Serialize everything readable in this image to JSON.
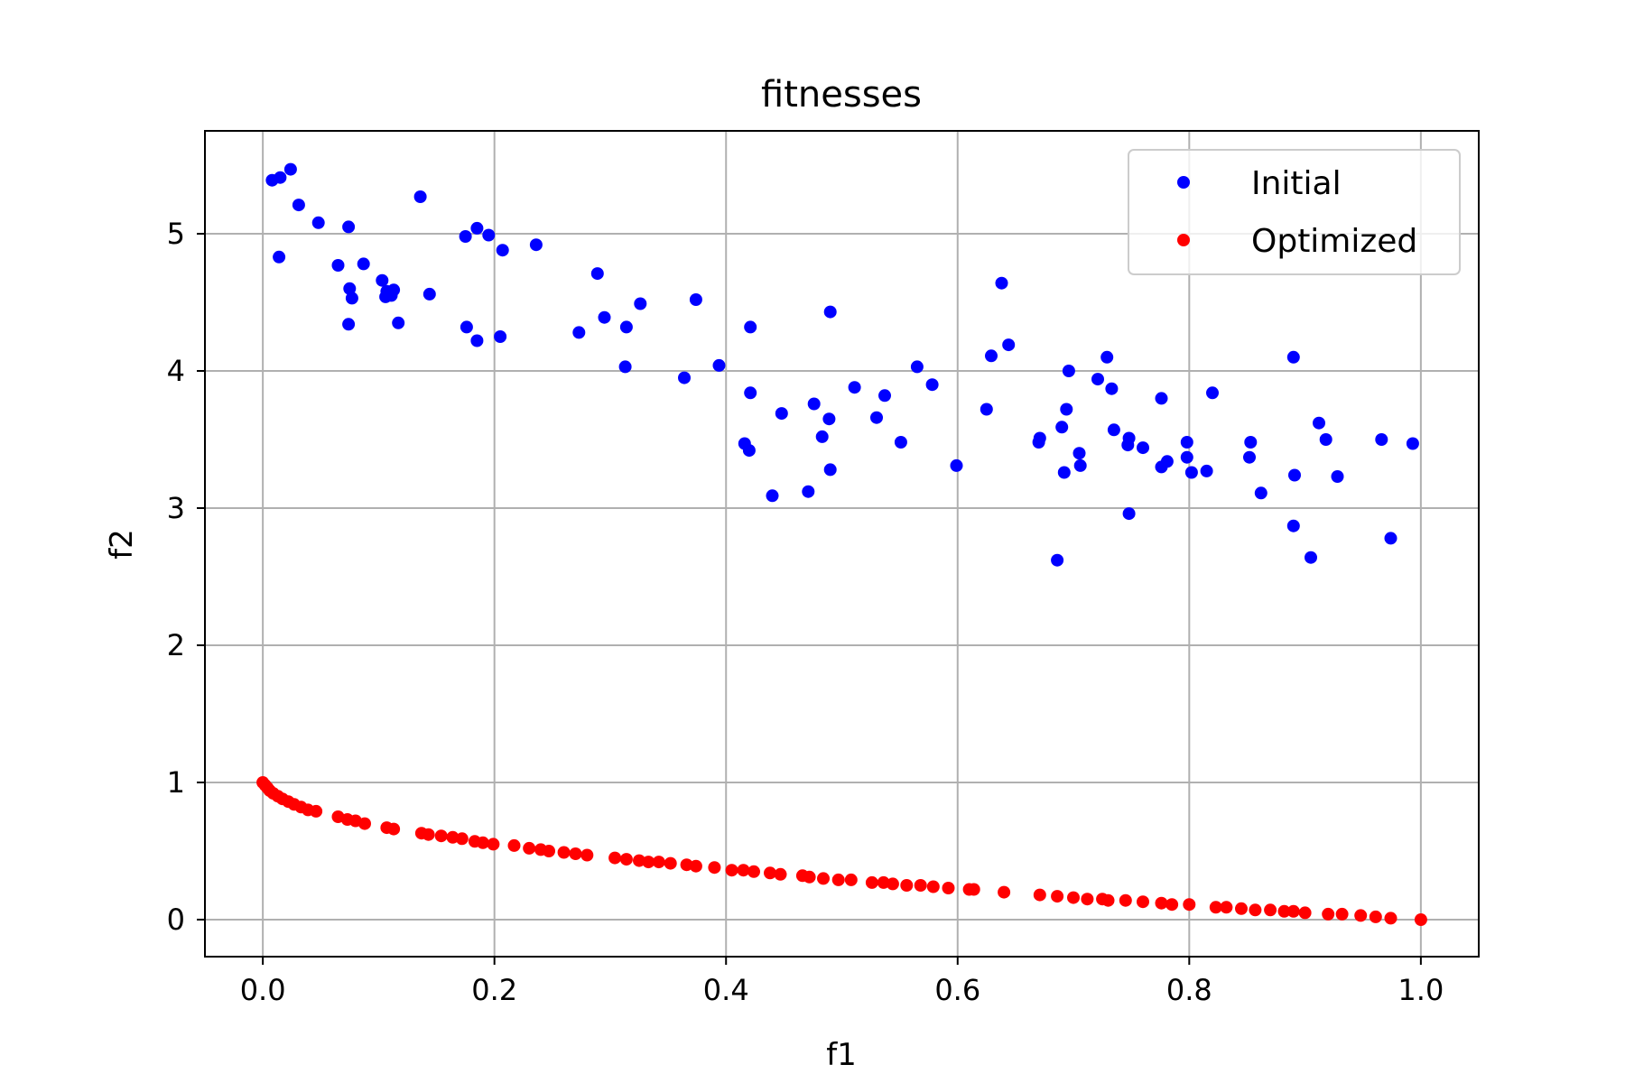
{
  "chart_data": {
    "type": "scatter",
    "title": "fitnesses",
    "xlabel": "f1",
    "ylabel": "f2",
    "xlim": [
      -0.05,
      1.05
    ],
    "ylim": [
      -0.27,
      5.75
    ],
    "xticks": [
      0.0,
      0.2,
      0.4,
      0.6,
      0.8,
      1.0
    ],
    "xtick_labels": [
      "0.0",
      "0.2",
      "0.4",
      "0.6",
      "0.8",
      "1.0"
    ],
    "yticks": [
      0,
      1,
      2,
      3,
      4,
      5
    ],
    "ytick_labels": [
      "0",
      "1",
      "2",
      "3",
      "4",
      "5"
    ],
    "grid": true,
    "legend_position": "top-right",
    "series": [
      {
        "name": "Initial",
        "color": "#0000ff",
        "points": [
          [
            0.008,
            5.39
          ],
          [
            0.015,
            5.41
          ],
          [
            0.024,
            5.47
          ],
          [
            0.031,
            5.21
          ],
          [
            0.014,
            4.83
          ],
          [
            0.048,
            5.08
          ],
          [
            0.074,
            5.05
          ],
          [
            0.065,
            4.77
          ],
          [
            0.087,
            4.78
          ],
          [
            0.075,
            4.6
          ],
          [
            0.077,
            4.53
          ],
          [
            0.074,
            4.34
          ],
          [
            0.103,
            4.66
          ],
          [
            0.107,
            4.58
          ],
          [
            0.106,
            4.54
          ],
          [
            0.113,
            4.59
          ],
          [
            0.111,
            4.55
          ],
          [
            0.117,
            4.35
          ],
          [
            0.136,
            5.27
          ],
          [
            0.144,
            4.56
          ],
          [
            0.175,
            4.98
          ],
          [
            0.185,
            5.04
          ],
          [
            0.195,
            4.99
          ],
          [
            0.207,
            4.88
          ],
          [
            0.176,
            4.32
          ],
          [
            0.185,
            4.22
          ],
          [
            0.205,
            4.25
          ],
          [
            0.236,
            4.92
          ],
          [
            0.289,
            4.71
          ],
          [
            0.273,
            4.28
          ],
          [
            0.295,
            4.39
          ],
          [
            0.314,
            4.32
          ],
          [
            0.326,
            4.49
          ],
          [
            0.313,
            4.03
          ],
          [
            0.364,
            3.95
          ],
          [
            0.374,
            4.52
          ],
          [
            0.394,
            4.04
          ],
          [
            0.421,
            4.32
          ],
          [
            0.421,
            3.84
          ],
          [
            0.416,
            3.47
          ],
          [
            0.42,
            3.42
          ],
          [
            0.44,
            3.09
          ],
          [
            0.448,
            3.69
          ],
          [
            0.476,
            3.76
          ],
          [
            0.471,
            3.12
          ],
          [
            0.483,
            3.52
          ],
          [
            0.489,
            3.65
          ],
          [
            0.49,
            4.43
          ],
          [
            0.49,
            3.28
          ],
          [
            0.511,
            3.88
          ],
          [
            0.53,
            3.66
          ],
          [
            0.537,
            3.82
          ],
          [
            0.551,
            3.48
          ],
          [
            0.565,
            4.03
          ],
          [
            0.578,
            3.9
          ],
          [
            0.599,
            3.31
          ],
          [
            0.625,
            3.72
          ],
          [
            0.629,
            4.11
          ],
          [
            0.638,
            4.64
          ],
          [
            0.644,
            4.19
          ],
          [
            0.67,
            3.48
          ],
          [
            0.671,
            3.51
          ],
          [
            0.69,
            3.59
          ],
          [
            0.692,
            3.26
          ],
          [
            0.694,
            3.72
          ],
          [
            0.696,
            4.0
          ],
          [
            0.686,
            2.62
          ],
          [
            0.705,
            3.4
          ],
          [
            0.706,
            3.31
          ],
          [
            0.721,
            3.94
          ],
          [
            0.729,
            4.1
          ],
          [
            0.733,
            3.87
          ],
          [
            0.735,
            3.57
          ],
          [
            0.747,
            3.46
          ],
          [
            0.748,
            3.51
          ],
          [
            0.748,
            2.96
          ],
          [
            0.76,
            3.44
          ],
          [
            0.776,
            3.3
          ],
          [
            0.776,
            3.8
          ],
          [
            0.781,
            3.34
          ],
          [
            0.798,
            3.48
          ],
          [
            0.798,
            3.37
          ],
          [
            0.802,
            3.26
          ],
          [
            0.815,
            3.27
          ],
          [
            0.82,
            3.84
          ],
          [
            0.853,
            3.48
          ],
          [
            0.852,
            3.37
          ],
          [
            0.862,
            3.11
          ],
          [
            0.89,
            4.1
          ],
          [
            0.891,
            3.24
          ],
          [
            0.89,
            2.87
          ],
          [
            0.905,
            2.64
          ],
          [
            0.912,
            3.62
          ],
          [
            0.918,
            3.5
          ],
          [
            0.928,
            3.23
          ],
          [
            0.966,
            3.5
          ],
          [
            0.974,
            2.78
          ],
          [
            0.993,
            3.47
          ]
        ]
      },
      {
        "name": "Optimized",
        "color": "#ff0000",
        "points": [
          [
            0.0,
            1.0
          ],
          [
            0.002,
            0.98
          ],
          [
            0.004,
            0.96
          ],
          [
            0.006,
            0.94
          ],
          [
            0.009,
            0.92
          ],
          [
            0.013,
            0.9
          ],
          [
            0.017,
            0.88
          ],
          [
            0.022,
            0.86
          ],
          [
            0.027,
            0.84
          ],
          [
            0.033,
            0.82
          ],
          [
            0.039,
            0.8
          ],
          [
            0.046,
            0.79
          ],
          [
            0.065,
            0.75
          ],
          [
            0.073,
            0.73
          ],
          [
            0.08,
            0.72
          ],
          [
            0.088,
            0.7
          ],
          [
            0.107,
            0.67
          ],
          [
            0.113,
            0.66
          ],
          [
            0.137,
            0.63
          ],
          [
            0.143,
            0.62
          ],
          [
            0.154,
            0.61
          ],
          [
            0.164,
            0.6
          ],
          [
            0.172,
            0.59
          ],
          [
            0.183,
            0.57
          ],
          [
            0.19,
            0.56
          ],
          [
            0.199,
            0.55
          ],
          [
            0.217,
            0.54
          ],
          [
            0.23,
            0.52
          ],
          [
            0.24,
            0.51
          ],
          [
            0.247,
            0.5
          ],
          [
            0.26,
            0.49
          ],
          [
            0.27,
            0.48
          ],
          [
            0.28,
            0.47
          ],
          [
            0.304,
            0.45
          ],
          [
            0.314,
            0.44
          ],
          [
            0.325,
            0.43
          ],
          [
            0.333,
            0.42
          ],
          [
            0.342,
            0.42
          ],
          [
            0.352,
            0.41
          ],
          [
            0.366,
            0.4
          ],
          [
            0.374,
            0.39
          ],
          [
            0.39,
            0.38
          ],
          [
            0.405,
            0.36
          ],
          [
            0.415,
            0.36
          ],
          [
            0.424,
            0.35
          ],
          [
            0.438,
            0.34
          ],
          [
            0.447,
            0.33
          ],
          [
            0.466,
            0.32
          ],
          [
            0.472,
            0.31
          ],
          [
            0.484,
            0.3
          ],
          [
            0.497,
            0.29
          ],
          [
            0.508,
            0.29
          ],
          [
            0.526,
            0.27
          ],
          [
            0.536,
            0.27
          ],
          [
            0.544,
            0.26
          ],
          [
            0.556,
            0.25
          ],
          [
            0.568,
            0.25
          ],
          [
            0.579,
            0.24
          ],
          [
            0.592,
            0.23
          ],
          [
            0.61,
            0.22
          ],
          [
            0.614,
            0.22
          ],
          [
            0.64,
            0.2
          ],
          [
            0.671,
            0.18
          ],
          [
            0.686,
            0.17
          ],
          [
            0.7,
            0.16
          ],
          [
            0.712,
            0.15
          ],
          [
            0.725,
            0.15
          ],
          [
            0.73,
            0.14
          ],
          [
            0.745,
            0.14
          ],
          [
            0.76,
            0.13
          ],
          [
            0.776,
            0.12
          ],
          [
            0.785,
            0.11
          ],
          [
            0.8,
            0.11
          ],
          [
            0.823,
            0.09
          ],
          [
            0.832,
            0.09
          ],
          [
            0.845,
            0.08
          ],
          [
            0.857,
            0.07
          ],
          [
            0.87,
            0.07
          ],
          [
            0.882,
            0.06
          ],
          [
            0.89,
            0.06
          ],
          [
            0.9,
            0.05
          ],
          [
            0.92,
            0.04
          ],
          [
            0.932,
            0.04
          ],
          [
            0.948,
            0.03
          ],
          [
            0.961,
            0.02
          ],
          [
            0.974,
            0.01
          ],
          [
            1.0,
            0.0
          ]
        ]
      }
    ]
  }
}
